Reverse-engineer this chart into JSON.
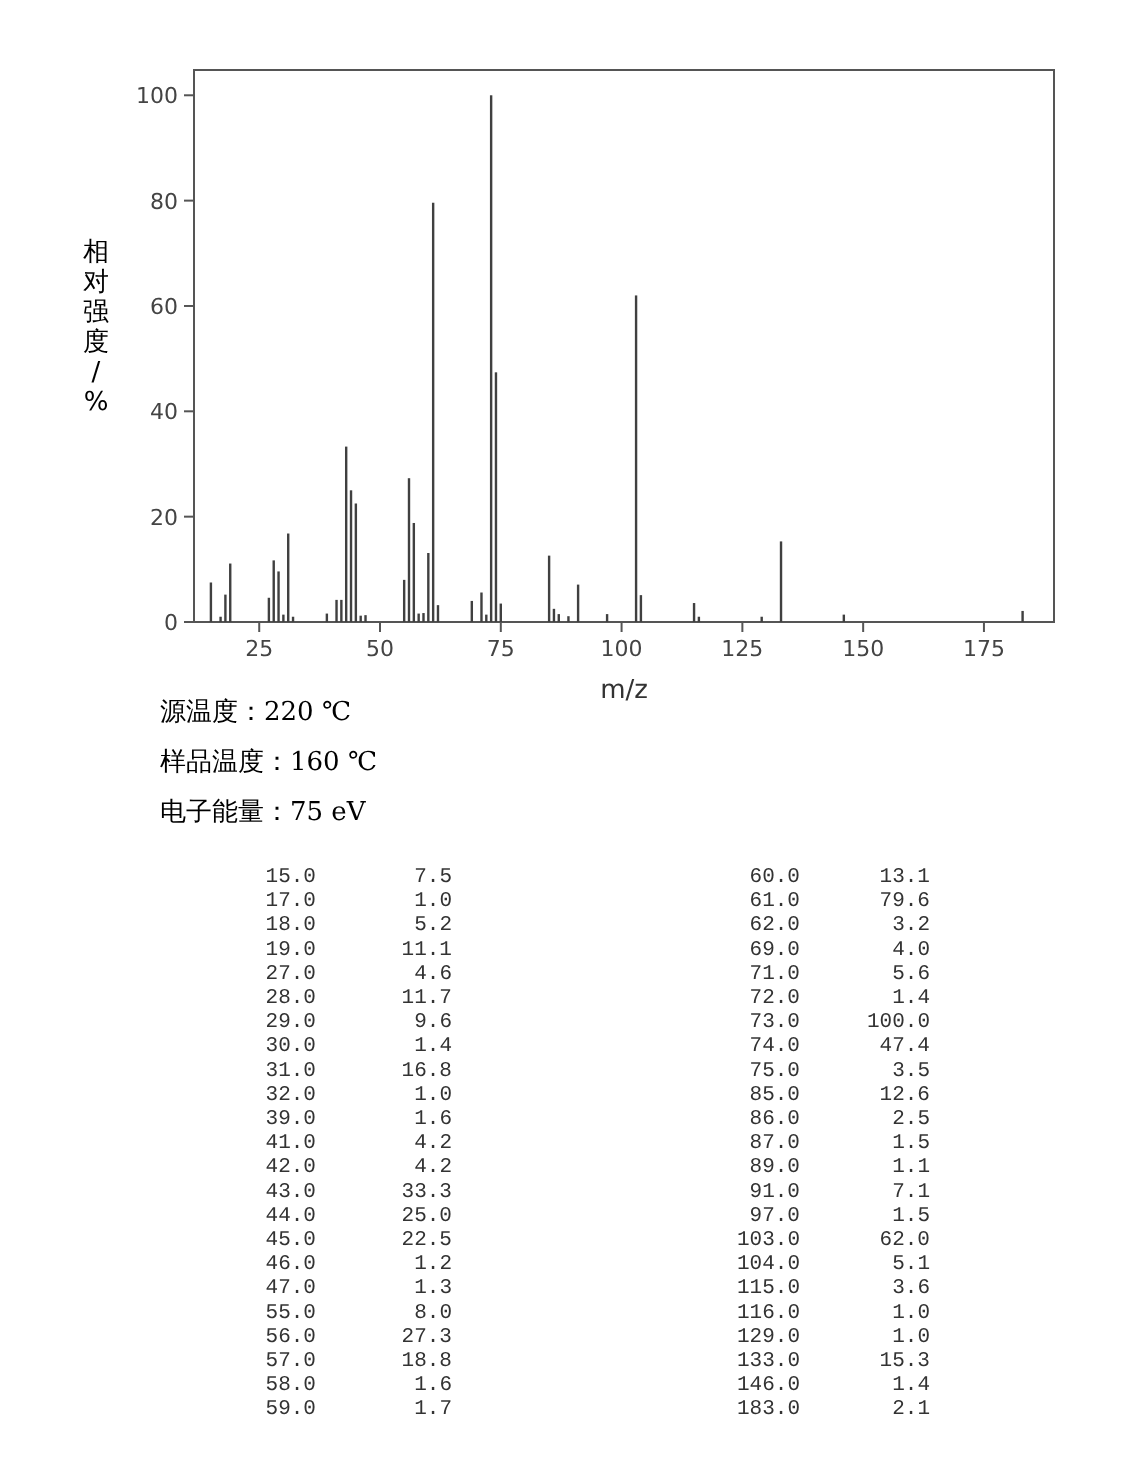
{
  "chart_data": [
    {
      "type": "bar",
      "xlabel": "m/z",
      "ylabel": "相对强度/%",
      "x": [
        15,
        17,
        18,
        19,
        27,
        28,
        29,
        30,
        31,
        32,
        39,
        41,
        42,
        43,
        44,
        45,
        46,
        47,
        55,
        56,
        57,
        58,
        59,
        60,
        61,
        62,
        69,
        71,
        72,
        73,
        74,
        75,
        85,
        86,
        87,
        89,
        91,
        97,
        103,
        104,
        115,
        116,
        129,
        133,
        146,
        183
      ],
      "values": [
        7.5,
        1.0,
        5.2,
        11.1,
        4.6,
        11.7,
        9.6,
        1.4,
        16.8,
        1.0,
        1.6,
        4.2,
        4.2,
        33.3,
        25.0,
        22.5,
        1.2,
        1.3,
        8.0,
        27.3,
        18.8,
        1.6,
        1.7,
        13.1,
        79.6,
        3.2,
        4.0,
        5.6,
        1.4,
        100.0,
        47.4,
        3.5,
        12.6,
        2.5,
        1.5,
        1.1,
        7.1,
        1.5,
        62.0,
        5.1,
        3.6,
        1.0,
        1.0,
        15.3,
        1.4,
        2.1
      ],
      "color": "#404040",
      "xlim": [
        11.5,
        189.5
      ],
      "xticks": [
        25,
        50,
        75,
        100,
        125,
        150,
        175
      ],
      "ylim": [
        0,
        104.8
      ],
      "yticks": [
        0,
        20,
        40,
        60,
        80,
        100
      ],
      "annotations": [
        "源温度：220 ℃",
        "样品温度：160 ℃",
        "电子能量：75 eV"
      ]
    },
    {
      "type": "other",
      "annotations": [
        "15.0",
        "7.5",
        "17.0",
        "1.0",
        "18.0",
        "5.2",
        "19.0",
        "11.1",
        "27.0",
        "4.6",
        "28.0",
        "11.7",
        "29.0",
        "9.6",
        "30.0",
        "1.4",
        "31.0",
        "16.8",
        "32.0",
        "1.0",
        "39.0",
        "1.6",
        "41.0",
        "4.2",
        "42.0",
        "4.2",
        "43.0",
        "33.3",
        "44.0",
        "25.0",
        "45.0",
        "22.5",
        "46.0",
        "1.2",
        "47.0",
        "1.3",
        "55.0",
        "8.0",
        "56.0",
        "27.3",
        "57.0",
        "18.8",
        "58.0",
        "1.6",
        "59.0",
        "1.7",
        "60.0",
        "13.1",
        "61.0",
        "79.6",
        "62.0",
        "3.2",
        "69.0",
        "4.0",
        "71.0",
        "5.6",
        "72.0",
        "1.4",
        "73.0",
        "100.0",
        "74.0",
        "47.4",
        "75.0",
        "3.5",
        "85.0",
        "12.6",
        "86.0",
        "2.5",
        "87.0",
        "1.5",
        "89.0",
        "1.1",
        "91.0",
        "7.1",
        "97.0",
        "1.5",
        "103.0",
        "62.0",
        "104.0",
        "5.1",
        "115.0",
        "3.6",
        "116.0",
        "1.0",
        "129.0",
        "1.0",
        "133.0",
        "15.3",
        "146.0",
        "1.4",
        "183.0",
        "2.1"
      ]
    }
  ]
}
